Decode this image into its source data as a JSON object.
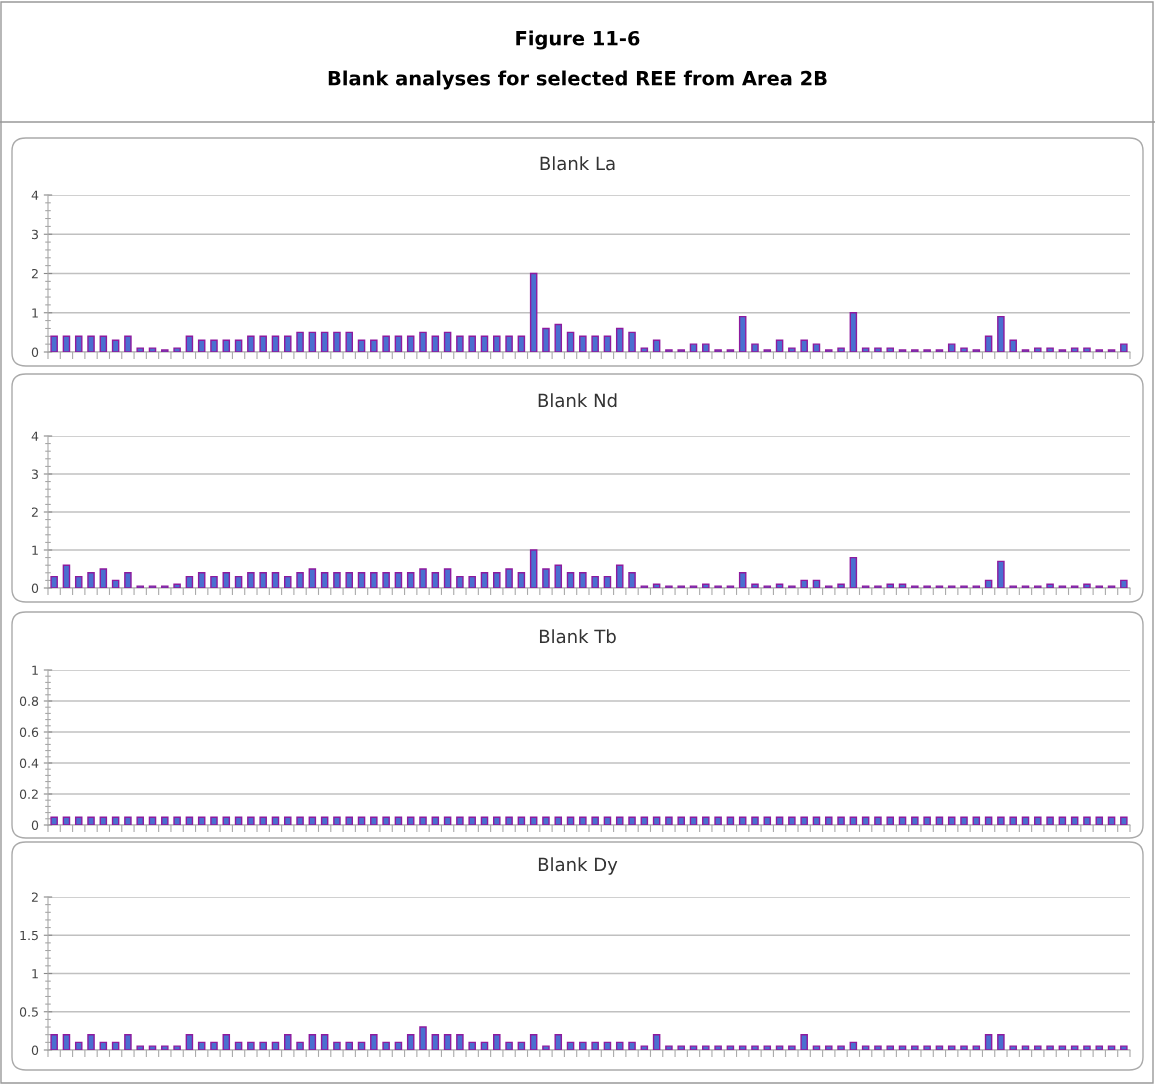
{
  "chart_data": [
    {
      "type": "bar",
      "title": "Blank La",
      "annotations": [
        "Figure 11-6",
        "Blank analyses for selected REE from Area 2B"
      ],
      "categories": [
        null,
        null,
        null,
        null,
        null,
        null,
        null,
        null,
        null,
        null,
        null,
        null,
        null,
        null,
        null,
        null,
        null,
        null,
        null,
        null,
        null,
        null,
        null,
        null,
        null,
        null,
        null,
        null,
        null,
        null,
        null,
        null,
        null,
        null,
        null,
        null,
        null,
        null,
        null,
        null,
        null,
        null,
        null,
        null,
        null,
        null,
        null,
        null,
        null,
        null,
        null,
        null,
        null,
        null,
        null,
        null,
        null,
        null,
        null,
        null,
        null,
        null,
        null,
        null,
        null,
        null,
        null,
        null,
        null,
        null,
        null,
        null,
        null,
        null,
        null,
        null,
        null,
        null,
        null,
        null,
        null,
        null,
        null,
        null,
        null,
        null,
        null,
        null
      ],
      "color": "#4a6fd0",
      "values": [
        0.4,
        0.4,
        0.4,
        0.4,
        0.4,
        0.3,
        0.4,
        0.1,
        0.1,
        0.05,
        0.1,
        0.4,
        0.3,
        0.3,
        0.3,
        0.3,
        0.4,
        0.4,
        0.4,
        0.4,
        0.5,
        0.5,
        0.5,
        0.5,
        0.5,
        0.3,
        0.3,
        0.4,
        0.4,
        0.4,
        0.5,
        0.4,
        0.5,
        0.4,
        0.4,
        0.4,
        0.4,
        0.4,
        0.4,
        2.0,
        0.6,
        0.7,
        0.5,
        0.4,
        0.4,
        0.4,
        0.6,
        0.5,
        0.1,
        0.3,
        0.05,
        0.05,
        0.2,
        0.2,
        0.05,
        0.05,
        0.9,
        0.2,
        0.05,
        0.3,
        0.1,
        0.3,
        0.2,
        0.05,
        0.1,
        1.0,
        0.1,
        0.1,
        0.1,
        0.05,
        0.05,
        0.05,
        0.05,
        0.2,
        0.1,
        0.05,
        0.4,
        0.9,
        0.3,
        0.05,
        0.1,
        0.1,
        0.05,
        0.1,
        0.1,
        0.05,
        0.05,
        0.2
      ],
      "ylim": [
        0,
        4
      ],
      "yticks": [
        0,
        1,
        2,
        3,
        4
      ],
      "grid": "y",
      "tick_labels": "y"
    },
    {
      "type": "bar",
      "title": "Blank Nd",
      "categories": [
        null,
        null,
        null,
        null,
        null,
        null,
        null,
        null,
        null,
        null,
        null,
        null,
        null,
        null,
        null,
        null,
        null,
        null,
        null,
        null,
        null,
        null,
        null,
        null,
        null,
        null,
        null,
        null,
        null,
        null,
        null,
        null,
        null,
        null,
        null,
        null,
        null,
        null,
        null,
        null,
        null,
        null,
        null,
        null,
        null,
        null,
        null,
        null,
        null,
        null,
        null,
        null,
        null,
        null,
        null,
        null,
        null,
        null,
        null,
        null,
        null,
        null,
        null,
        null,
        null,
        null,
        null,
        null,
        null,
        null,
        null,
        null,
        null,
        null,
        null,
        null,
        null,
        null,
        null,
        null,
        null,
        null,
        null,
        null,
        null,
        null,
        null,
        null
      ],
      "color": "#4a6fd0",
      "values": [
        0.3,
        0.6,
        0.3,
        0.4,
        0.5,
        0.2,
        0.4,
        0.05,
        0.05,
        0.05,
        0.1,
        0.3,
        0.4,
        0.3,
        0.4,
        0.3,
        0.4,
        0.4,
        0.4,
        0.3,
        0.4,
        0.5,
        0.4,
        0.4,
        0.4,
        0.4,
        0.4,
        0.4,
        0.4,
        0.4,
        0.5,
        0.4,
        0.5,
        0.3,
        0.3,
        0.4,
        0.4,
        0.5,
        0.4,
        1.0,
        0.5,
        0.6,
        0.4,
        0.4,
        0.3,
        0.3,
        0.6,
        0.4,
        0.05,
        0.1,
        0.05,
        0.05,
        0.05,
        0.1,
        0.05,
        0.05,
        0.4,
        0.1,
        0.05,
        0.1,
        0.05,
        0.2,
        0.2,
        0.05,
        0.1,
        0.8,
        0.05,
        0.05,
        0.1,
        0.1,
        0.05,
        0.05,
        0.05,
        0.05,
        0.05,
        0.05,
        0.2,
        0.7,
        0.05,
        0.05,
        0.05,
        0.1,
        0.05,
        0.05,
        0.1,
        0.05,
        0.05,
        0.2
      ],
      "ylim": [
        0,
        4
      ],
      "yticks": [
        0,
        1,
        2,
        3,
        4
      ],
      "grid": "y",
      "tick_labels": "y"
    },
    {
      "type": "bar",
      "title": "Blank Tb",
      "categories": [
        null,
        null,
        null,
        null,
        null,
        null,
        null,
        null,
        null,
        null,
        null,
        null,
        null,
        null,
        null,
        null,
        null,
        null,
        null,
        null,
        null,
        null,
        null,
        null,
        null,
        null,
        null,
        null,
        null,
        null,
        null,
        null,
        null,
        null,
        null,
        null,
        null,
        null,
        null,
        null,
        null,
        null,
        null,
        null,
        null,
        null,
        null,
        null,
        null,
        null,
        null,
        null,
        null,
        null,
        null,
        null,
        null,
        null,
        null,
        null,
        null,
        null,
        null,
        null,
        null,
        null,
        null,
        null,
        null,
        null,
        null,
        null,
        null,
        null,
        null,
        null,
        null,
        null,
        null,
        null,
        null,
        null,
        null,
        null,
        null,
        null,
        null,
        null
      ],
      "color": "#4a6fd0",
      "values": [
        0.05,
        0.05,
        0.05,
        0.05,
        0.05,
        0.05,
        0.05,
        0.05,
        0.05,
        0.05,
        0.05,
        0.05,
        0.05,
        0.05,
        0.05,
        0.05,
        0.05,
        0.05,
        0.05,
        0.05,
        0.05,
        0.05,
        0.05,
        0.05,
        0.05,
        0.05,
        0.05,
        0.05,
        0.05,
        0.05,
        0.05,
        0.05,
        0.05,
        0.05,
        0.05,
        0.05,
        0.05,
        0.05,
        0.05,
        0.05,
        0.05,
        0.05,
        0.05,
        0.05,
        0.05,
        0.05,
        0.05,
        0.05,
        0.05,
        0.05,
        0.05,
        0.05,
        0.05,
        0.05,
        0.05,
        0.05,
        0.05,
        0.05,
        0.05,
        0.05,
        0.05,
        0.05,
        0.05,
        0.05,
        0.05,
        0.05,
        0.05,
        0.05,
        0.05,
        0.05,
        0.05,
        0.05,
        0.05,
        0.05,
        0.05,
        0.05,
        0.05,
        0.05,
        0.05,
        0.05,
        0.05,
        0.05,
        0.05,
        0.05,
        0.05,
        0.05,
        0.05,
        0.05
      ],
      "ylim": [
        0,
        1
      ],
      "yticks": [
        0,
        0.2,
        0.4,
        0.6,
        0.8,
        1
      ],
      "grid": "y",
      "tick_labels": "y"
    },
    {
      "type": "bar",
      "title": "Blank Dy",
      "categories": [
        null,
        null,
        null,
        null,
        null,
        null,
        null,
        null,
        null,
        null,
        null,
        null,
        null,
        null,
        null,
        null,
        null,
        null,
        null,
        null,
        null,
        null,
        null,
        null,
        null,
        null,
        null,
        null,
        null,
        null,
        null,
        null,
        null,
        null,
        null,
        null,
        null,
        null,
        null,
        null,
        null,
        null,
        null,
        null,
        null,
        null,
        null,
        null,
        null,
        null,
        null,
        null,
        null,
        null,
        null,
        null,
        null,
        null,
        null,
        null,
        null,
        null,
        null,
        null,
        null,
        null,
        null,
        null,
        null,
        null,
        null,
        null,
        null,
        null,
        null,
        null,
        null,
        null,
        null,
        null,
        null,
        null,
        null,
        null,
        null,
        null,
        null,
        null
      ],
      "color": "#4a6fd0",
      "values": [
        0.2,
        0.2,
        0.1,
        0.2,
        0.1,
        0.1,
        0.2,
        0.05,
        0.05,
        0.05,
        0.05,
        0.2,
        0.1,
        0.1,
        0.2,
        0.1,
        0.1,
        0.1,
        0.1,
        0.2,
        0.1,
        0.2,
        0.2,
        0.1,
        0.1,
        0.1,
        0.2,
        0.1,
        0.1,
        0.2,
        0.3,
        0.2,
        0.2,
        0.2,
        0.1,
        0.1,
        0.2,
        0.1,
        0.1,
        0.2,
        0.05,
        0.2,
        0.1,
        0.1,
        0.1,
        0.1,
        0.1,
        0.1,
        0.05,
        0.2,
        0.05,
        0.05,
        0.05,
        0.05,
        0.05,
        0.05,
        0.05,
        0.05,
        0.05,
        0.05,
        0.05,
        0.2,
        0.05,
        0.05,
        0.05,
        0.1,
        0.05,
        0.05,
        0.05,
        0.05,
        0.05,
        0.05,
        0.05,
        0.05,
        0.05,
        0.05,
        0.2,
        0.2,
        0.05,
        0.05,
        0.05,
        0.05,
        0.05,
        0.05,
        0.05,
        0.05,
        0.05,
        0.05
      ],
      "ylim": [
        0,
        2
      ],
      "yticks": [
        0,
        0.5,
        1,
        1.5,
        2
      ],
      "grid": "y",
      "tick_labels": "y"
    }
  ]
}
